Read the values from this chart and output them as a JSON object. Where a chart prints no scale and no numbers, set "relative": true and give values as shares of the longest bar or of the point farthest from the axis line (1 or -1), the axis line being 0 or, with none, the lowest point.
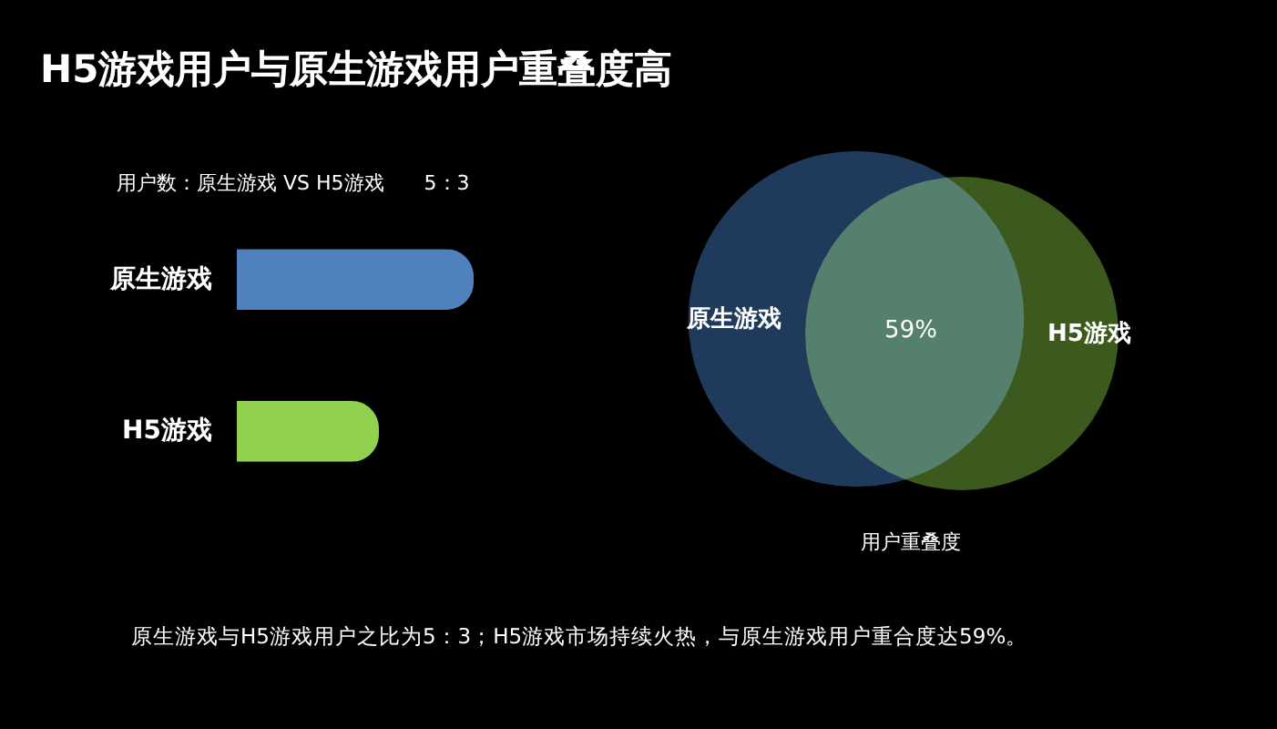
{
  "chart_data": [
    {
      "type": "bar",
      "orientation": "horizontal",
      "relative": true,
      "title": "H5游戏用户与原生游戏用户重叠度高",
      "subtitle": "用户数：原生游戏 VS H5游戏　　5：3",
      "categories": [
        "原生游戏",
        "H5游戏"
      ],
      "values": [
        1,
        0.6
      ],
      "colors": [
        "#4f81bd",
        "#92d050"
      ],
      "annotations": [
        "原生游戏与H5游戏用户之比为5：3；H5游戏市场持续火热，与原生游戏用户重合度达59%。"
      ]
    },
    {
      "type": "other",
      "categories": [
        "原生游戏",
        "H5游戏"
      ],
      "colors": [
        "#1f3a5a",
        "#3d5a1e"
      ],
      "annotations": [
        "59%"
      ],
      "xlabel": "用户重叠度"
    }
  ]
}
